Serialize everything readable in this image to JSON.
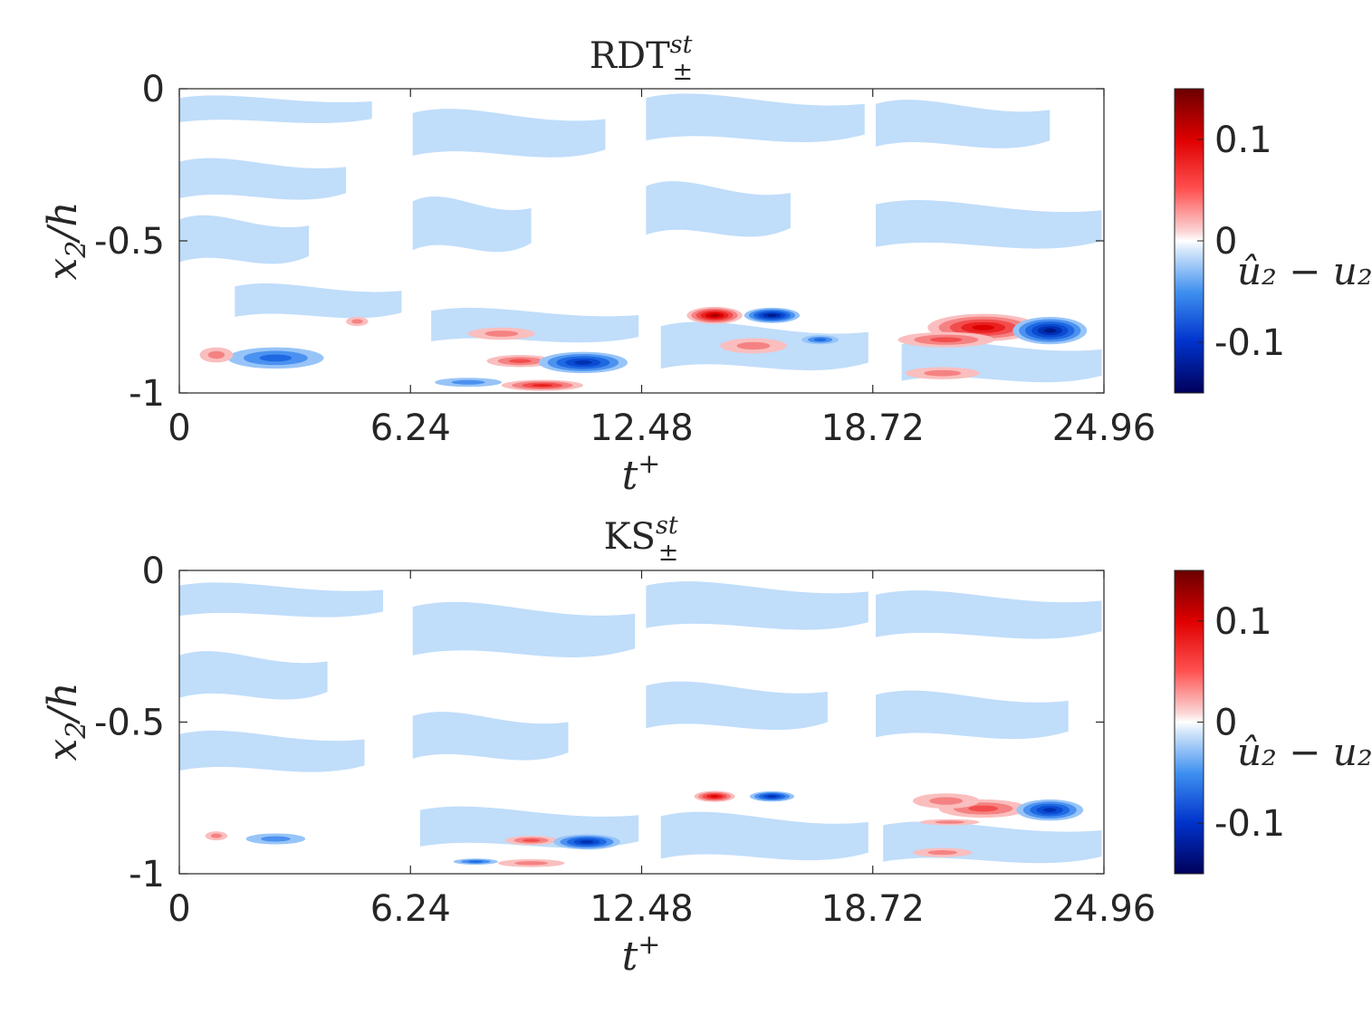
{
  "chart_data": [
    {
      "type": "heatmap",
      "title": "RDT",
      "title_superscript": "st",
      "title_subscript": "±",
      "xlabel": "t",
      "xlabel_superscript": "+",
      "ylabel": "x",
      "ylabel_subscript": "2",
      "ylabel_suffix": "/h",
      "xlim": [
        0,
        24.96
      ],
      "ylim": [
        -1,
        0
      ],
      "xticks": [
        0,
        6.24,
        12.48,
        18.72,
        24.96
      ],
      "xtick_labels": [
        "0",
        "6.24",
        "12.48",
        "18.72",
        "24.96"
      ],
      "yticks": [
        0,
        -0.5,
        -1
      ],
      "ytick_labels": [
        "0",
        "-0.5",
        "-1"
      ],
      "colorbar": {
        "label": "û₂ − u₂",
        "clim": [
          -0.15,
          0.15
        ],
        "ticks": [
          0.1,
          0,
          -0.1
        ],
        "tick_labels": [
          "0.1",
          "0",
          "-0.1"
        ],
        "colormap": "blue-white-red"
      },
      "features": [
        {
          "kind": "band",
          "level": -0.02,
          "t_start": 0.0,
          "x2": -0.07,
          "thickness": 0.08,
          "t_end": 5.2
        },
        {
          "kind": "band",
          "level": -0.02,
          "t_start": 0.0,
          "x2": -0.3,
          "thickness": 0.12,
          "t_end": 4.5
        },
        {
          "kind": "band",
          "level": -0.02,
          "t_start": 0.0,
          "x2": -0.5,
          "thickness": 0.14,
          "t_end": 3.5
        },
        {
          "kind": "band",
          "level": -0.02,
          "t_start": 1.5,
          "x2": -0.7,
          "thickness": 0.1,
          "t_end": 6.0
        },
        {
          "kind": "band",
          "level": -0.02,
          "t_start": 6.3,
          "x2": -0.15,
          "thickness": 0.14,
          "t_end": 11.5
        },
        {
          "kind": "band",
          "level": -0.02,
          "t_start": 6.3,
          "x2": -0.45,
          "thickness": 0.16,
          "t_end": 9.5
        },
        {
          "kind": "band",
          "level": -0.02,
          "t_start": 6.8,
          "x2": -0.78,
          "thickness": 0.1,
          "t_end": 12.4
        },
        {
          "kind": "band",
          "level": -0.02,
          "t_start": 12.6,
          "x2": -0.1,
          "thickness": 0.14,
          "t_end": 18.5
        },
        {
          "kind": "band",
          "level": -0.02,
          "t_start": 12.6,
          "x2": -0.4,
          "thickness": 0.16,
          "t_end": 16.5
        },
        {
          "kind": "band",
          "level": -0.02,
          "t_start": 13.0,
          "x2": -0.85,
          "thickness": 0.14,
          "t_end": 18.6
        },
        {
          "kind": "band",
          "level": -0.02,
          "t_start": 18.8,
          "x2": -0.12,
          "thickness": 0.14,
          "t_end": 23.5
        },
        {
          "kind": "band",
          "level": -0.02,
          "t_start": 18.8,
          "x2": -0.45,
          "thickness": 0.14,
          "t_end": 24.9
        },
        {
          "kind": "band",
          "level": -0.02,
          "t_start": 19.5,
          "x2": -0.9,
          "thickness": 0.12,
          "t_end": 24.9
        },
        {
          "kind": "blob",
          "level": -0.06,
          "t": 2.6,
          "x2": -0.885,
          "dt": 1.3,
          "dx": 0.035
        },
        {
          "kind": "blob",
          "level": 0.04,
          "t": 1.0,
          "x2": -0.875,
          "dt": 0.45,
          "dx": 0.025
        },
        {
          "kind": "blob",
          "level": 0.03,
          "t": 4.8,
          "x2": -0.765,
          "dt": 0.3,
          "dx": 0.015
        },
        {
          "kind": "blob",
          "level": 0.05,
          "t": 9.2,
          "x2": -0.895,
          "dt": 0.9,
          "dx": 0.02
        },
        {
          "kind": "blob",
          "level": 0.04,
          "t": 8.7,
          "x2": -0.805,
          "dt": 0.9,
          "dx": 0.02
        },
        {
          "kind": "blob",
          "level": -0.1,
          "t": 10.9,
          "x2": -0.9,
          "dt": 1.2,
          "dx": 0.035
        },
        {
          "kind": "blob",
          "level": 0.07,
          "t": 9.8,
          "x2": -0.975,
          "dt": 1.1,
          "dx": 0.018
        },
        {
          "kind": "blob",
          "level": -0.04,
          "t": 7.8,
          "x2": -0.965,
          "dt": 0.9,
          "dx": 0.015
        },
        {
          "kind": "blob",
          "level": 0.12,
          "t": 14.45,
          "x2": -0.745,
          "dt": 0.75,
          "dx": 0.028
        },
        {
          "kind": "blob",
          "level": -0.11,
          "t": 16.0,
          "x2": -0.745,
          "dt": 0.75,
          "dx": 0.025
        },
        {
          "kind": "blob",
          "level": 0.04,
          "t": 15.5,
          "x2": -0.845,
          "dt": 0.9,
          "dx": 0.025
        },
        {
          "kind": "blob",
          "level": -0.05,
          "t": 17.3,
          "x2": -0.825,
          "dt": 0.5,
          "dx": 0.015
        },
        {
          "kind": "blob",
          "level": 0.09,
          "t": 21.7,
          "x2": -0.785,
          "dt": 1.5,
          "dx": 0.045
        },
        {
          "kind": "blob",
          "level": 0.06,
          "t": 20.7,
          "x2": -0.825,
          "dt": 1.3,
          "dx": 0.025
        },
        {
          "kind": "blob",
          "level": -0.11,
          "t": 23.5,
          "x2": -0.795,
          "dt": 1.0,
          "dx": 0.045
        },
        {
          "kind": "blob",
          "level": 0.04,
          "t": 20.6,
          "x2": -0.935,
          "dt": 1.0,
          "dx": 0.02
        }
      ]
    },
    {
      "type": "heatmap",
      "title": "KS",
      "title_superscript": "st",
      "title_subscript": "±",
      "xlabel": "t",
      "xlabel_superscript": "+",
      "ylabel": "x",
      "ylabel_subscript": "2",
      "ylabel_suffix": "/h",
      "xlim": [
        0,
        24.96
      ],
      "ylim": [
        -1,
        0
      ],
      "xticks": [
        0,
        6.24,
        12.48,
        18.72,
        24.96
      ],
      "xtick_labels": [
        "0",
        "6.24",
        "12.48",
        "18.72",
        "24.96"
      ],
      "yticks": [
        0,
        -0.5,
        -1
      ],
      "ytick_labels": [
        "0",
        "-0.5",
        "-1"
      ],
      "colorbar": {
        "label": "û₂ − u₂",
        "clim": [
          -0.15,
          0.15
        ],
        "ticks": [
          0.1,
          0,
          -0.1
        ],
        "tick_labels": [
          "0.1",
          "0",
          "-0.1"
        ],
        "colormap": "blue-white-red"
      },
      "features": [
        {
          "kind": "band",
          "level": -0.02,
          "t_start": 0.0,
          "x2": -0.1,
          "thickness": 0.1,
          "t_end": 5.5
        },
        {
          "kind": "band",
          "level": -0.02,
          "t_start": 0.0,
          "x2": -0.35,
          "thickness": 0.14,
          "t_end": 4.0
        },
        {
          "kind": "band",
          "level": -0.02,
          "t_start": 0.0,
          "x2": -0.6,
          "thickness": 0.12,
          "t_end": 5.0
        },
        {
          "kind": "band",
          "level": -0.02,
          "t_start": 6.3,
          "x2": -0.2,
          "thickness": 0.16,
          "t_end": 12.3
        },
        {
          "kind": "band",
          "level": -0.02,
          "t_start": 6.3,
          "x2": -0.55,
          "thickness": 0.14,
          "t_end": 10.5
        },
        {
          "kind": "band",
          "level": -0.02,
          "t_start": 6.5,
          "x2": -0.85,
          "thickness": 0.12,
          "t_end": 12.4
        },
        {
          "kind": "band",
          "level": -0.02,
          "t_start": 12.6,
          "x2": -0.12,
          "thickness": 0.14,
          "t_end": 18.6
        },
        {
          "kind": "band",
          "level": -0.02,
          "t_start": 12.6,
          "x2": -0.45,
          "thickness": 0.14,
          "t_end": 17.5
        },
        {
          "kind": "band",
          "level": -0.02,
          "t_start": 13.0,
          "x2": -0.88,
          "thickness": 0.14,
          "t_end": 18.6
        },
        {
          "kind": "band",
          "level": -0.02,
          "t_start": 18.8,
          "x2": -0.15,
          "thickness": 0.14,
          "t_end": 24.9
        },
        {
          "kind": "band",
          "level": -0.02,
          "t_start": 18.8,
          "x2": -0.48,
          "thickness": 0.14,
          "t_end": 24.0
        },
        {
          "kind": "band",
          "level": -0.02,
          "t_start": 19.0,
          "x2": -0.9,
          "thickness": 0.12,
          "t_end": 24.9
        },
        {
          "kind": "blob",
          "level": -0.04,
          "t": 2.6,
          "x2": -0.885,
          "dt": 0.8,
          "dx": 0.018
        },
        {
          "kind": "blob",
          "level": 0.04,
          "t": 1.0,
          "x2": -0.875,
          "dt": 0.3,
          "dx": 0.015
        },
        {
          "kind": "blob",
          "level": 0.05,
          "t": 9.5,
          "x2": -0.89,
          "dt": 0.7,
          "dx": 0.015
        },
        {
          "kind": "blob",
          "level": -0.09,
          "t": 11.0,
          "x2": -0.895,
          "dt": 0.9,
          "dx": 0.025
        },
        {
          "kind": "blob",
          "level": 0.04,
          "t": 9.5,
          "x2": -0.965,
          "dt": 0.9,
          "dx": 0.013
        },
        {
          "kind": "blob",
          "level": -0.05,
          "t": 8.0,
          "x2": -0.96,
          "dt": 0.6,
          "dx": 0.01
        },
        {
          "kind": "blob",
          "level": 0.1,
          "t": 14.45,
          "x2": -0.745,
          "dt": 0.55,
          "dx": 0.018
        },
        {
          "kind": "blob",
          "level": -0.09,
          "t": 16.0,
          "x2": -0.745,
          "dt": 0.6,
          "dx": 0.017
        },
        {
          "kind": "blob",
          "level": 0.05,
          "t": 21.7,
          "x2": -0.785,
          "dt": 1.2,
          "dx": 0.03
        },
        {
          "kind": "blob",
          "level": 0.035,
          "t": 20.7,
          "x2": -0.76,
          "dt": 0.9,
          "dx": 0.025
        },
        {
          "kind": "blob",
          "level": 0.03,
          "t": 20.8,
          "x2": -0.83,
          "dt": 0.8,
          "dx": 0.01
        },
        {
          "kind": "blob",
          "level": -0.09,
          "t": 23.5,
          "x2": -0.79,
          "dt": 0.9,
          "dx": 0.035
        },
        {
          "kind": "blob",
          "level": 0.035,
          "t": 20.6,
          "x2": -0.93,
          "dt": 0.8,
          "dx": 0.015
        }
      ]
    }
  ]
}
